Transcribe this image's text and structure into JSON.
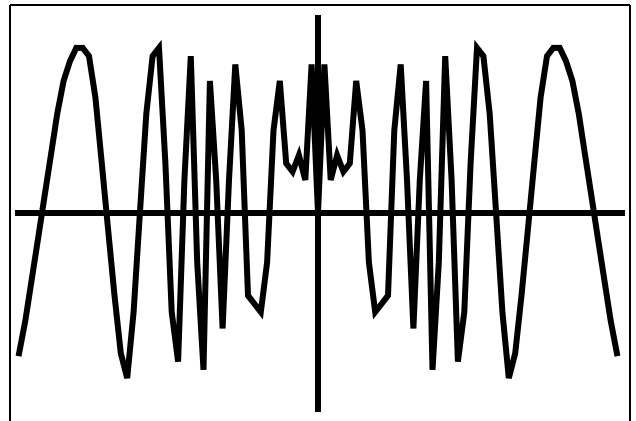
{
  "chart_data": {
    "type": "line",
    "x": [
      -47,
      -46,
      -45,
      -44,
      -43,
      -42,
      -41,
      -40,
      -39,
      -38,
      -37,
      -36,
      -35,
      -34,
      -33,
      -32,
      -31,
      -30,
      -29,
      -28,
      -27,
      -26,
      -25,
      -24,
      -23,
      -22,
      -21,
      -20,
      -19,
      -18,
      -17,
      -16,
      -15,
      -14,
      -13,
      -12,
      -11,
      -10,
      -9,
      -8,
      -7,
      -6,
      -5,
      -4,
      -3,
      -2,
      -1,
      0,
      1,
      2,
      3,
      4,
      5,
      6,
      7,
      8,
      9,
      10,
      11,
      12,
      13,
      14,
      15,
      16,
      17,
      18,
      19,
      20,
      21,
      22,
      23,
      24,
      25,
      26,
      27,
      28,
      29,
      30,
      31,
      32,
      33,
      34,
      35,
      36,
      37,
      38,
      39,
      40,
      41,
      42,
      43,
      44,
      45,
      46,
      47
    ],
    "series": [
      {
        "color": "#000000",
        "values": [
          -0.85,
          -0.65,
          -0.4,
          -0.15,
          0.1,
          0.35,
          0.6,
          0.8,
          0.92,
          1,
          1,
          0.95,
          0.7,
          0.3,
          -0.1,
          -0.5,
          -0.85,
          -1,
          -0.6,
          0,
          0.6,
          0.95,
          1,
          0.3,
          -0.6,
          -0.9,
          0.2,
          0.95,
          -0.3,
          -0.95,
          0.8,
          0.2,
          -0.7,
          0.2,
          0.9,
          0.5,
          -0.5,
          -0.55,
          -0.6,
          -0.3,
          0.5,
          0.8,
          0.3,
          0.25,
          0.35,
          0.2,
          0.9,
          0,
          0.9,
          0.2,
          0.35,
          0.25,
          0.3,
          0.8,
          0.5,
          -0.3,
          -0.6,
          -0.55,
          -0.5,
          0.5,
          0.9,
          0.2,
          -0.7,
          0.2,
          0.8,
          -0.95,
          -0.3,
          0.95,
          0.2,
          -0.9,
          -0.6,
          0.3,
          1,
          0.95,
          0.6,
          0,
          -0.6,
          -1,
          -0.85,
          -0.5,
          -0.1,
          0.3,
          0.7,
          0.95,
          1,
          1,
          0.92,
          0.8,
          0.6,
          0.35,
          0.1,
          -0.15,
          -0.4,
          -0.65,
          -0.85
        ]
      }
    ],
    "xlim": [
      -50,
      50
    ],
    "ylim": [
      -1.26,
      1.29
    ]
  }
}
